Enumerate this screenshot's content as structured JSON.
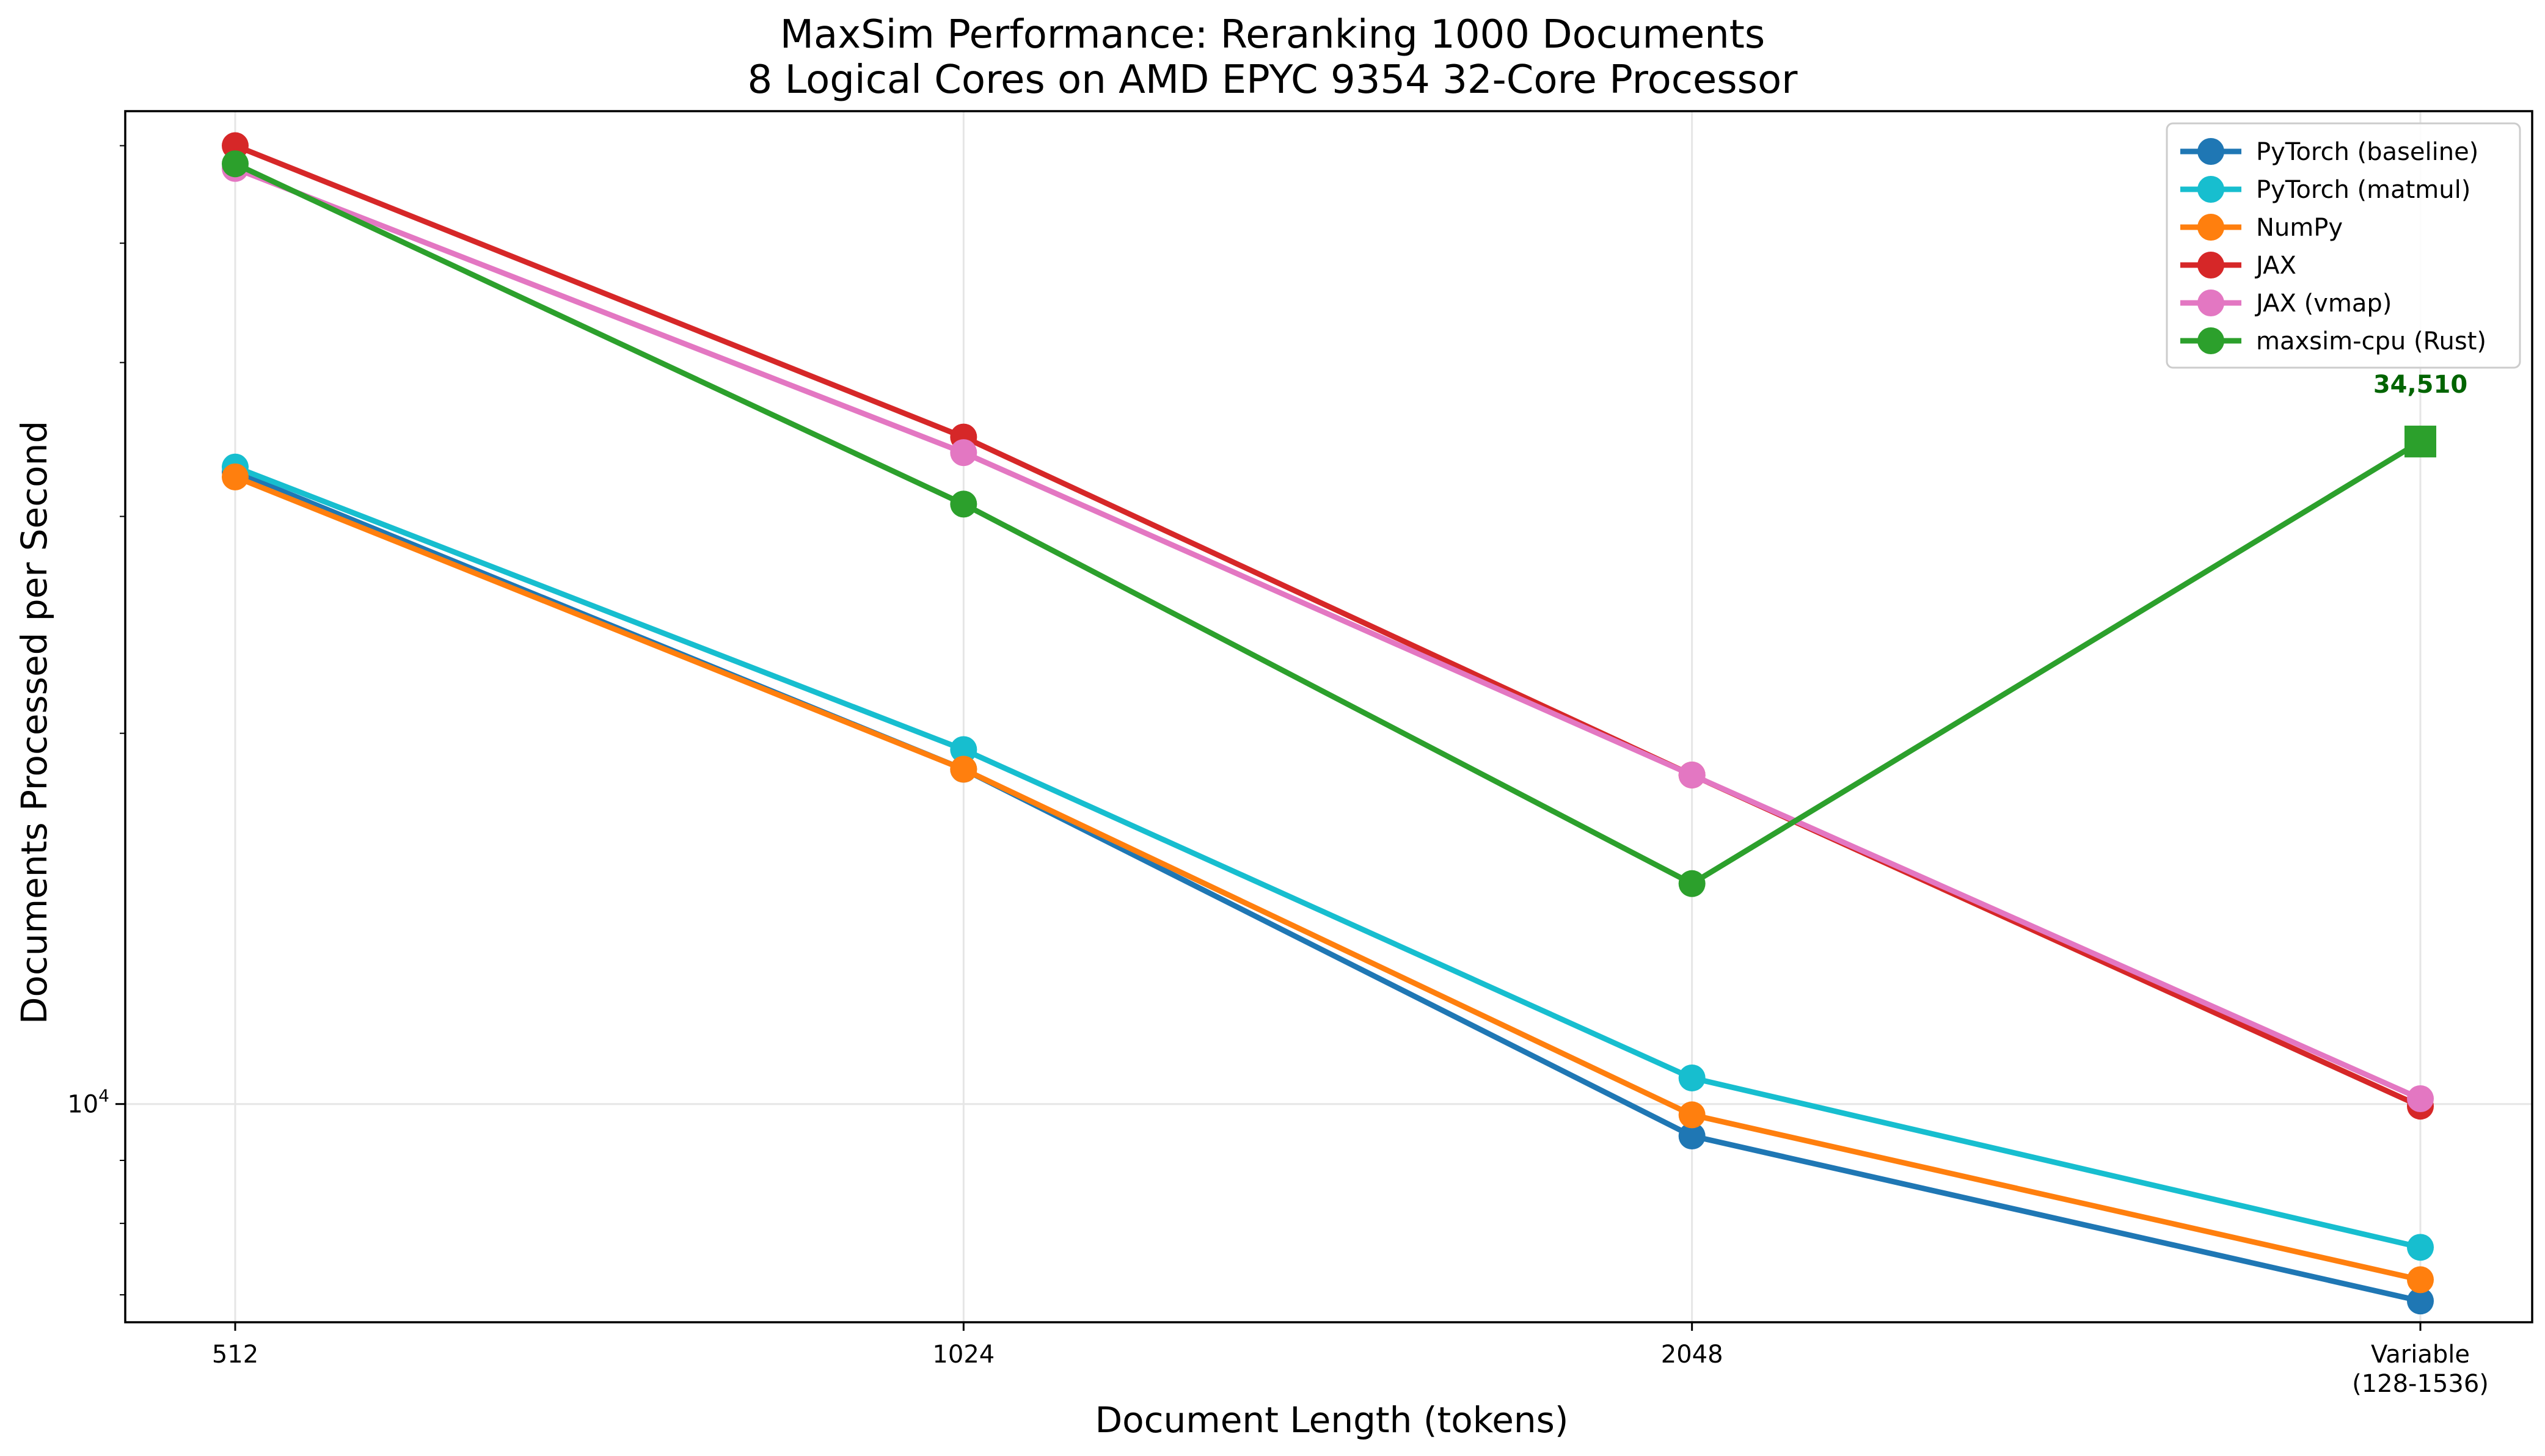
{
  "chart_data": {
    "type": "line",
    "title": "MaxSim Performance: Reranking 1000 Documents",
    "subtitle": "8 Logical Cores on AMD EPYC 9354 32-Core Processor",
    "xlabel": "Document Length (tokens)",
    "ylabel": "Documents Processed per Second",
    "yscale": "log",
    "ylim": [
      6650,
      64000
    ],
    "categories": [
      "512",
      "1024",
      "2048",
      "Variable\n(128-1536)"
    ],
    "y_tick_labels": [
      {
        "value": 10000,
        "label": "10^4"
      }
    ],
    "grid": true,
    "legend_position": "top-right",
    "series": [
      {
        "name": "PyTorch (baseline)",
        "color": "#1f77b4",
        "values": [
          32600,
          18700,
          9420,
          6920
        ],
        "marker": [
          "circle",
          "circle",
          "circle",
          "circle"
        ]
      },
      {
        "name": "PyTorch (matmul)",
        "color": "#17becf",
        "values": [
          32900,
          19400,
          10500,
          7650
        ],
        "marker": [
          "circle",
          "circle",
          "circle",
          "circle"
        ]
      },
      {
        "name": "NumPy",
        "color": "#ff7f0e",
        "values": [
          32300,
          18700,
          9800,
          7200
        ],
        "marker": [
          "circle",
          "circle",
          "circle",
          "circle"
        ]
      },
      {
        "name": "JAX",
        "color": "#d62728",
        "values": [
          60000,
          34800,
          18500,
          9960
        ],
        "marker": [
          "circle",
          "circle",
          "circle",
          "circle"
        ]
      },
      {
        "name": "JAX (vmap)",
        "color": "#e377c2",
        "values": [
          57500,
          33800,
          18500,
          10100
        ],
        "marker": [
          "circle",
          "circle",
          "circle",
          "circle"
        ]
      },
      {
        "name": "maxsim-cpu (Rust)",
        "color": "#2ca02c",
        "values": [
          58000,
          30700,
          15100,
          34510
        ],
        "marker": [
          "circle",
          "circle",
          "circle",
          "square"
        ]
      }
    ],
    "annotations": [
      {
        "text": "34,510",
        "series": "maxsim-cpu (Rust)",
        "category": "Variable\n(128-1536)",
        "color": "#006400"
      }
    ]
  }
}
